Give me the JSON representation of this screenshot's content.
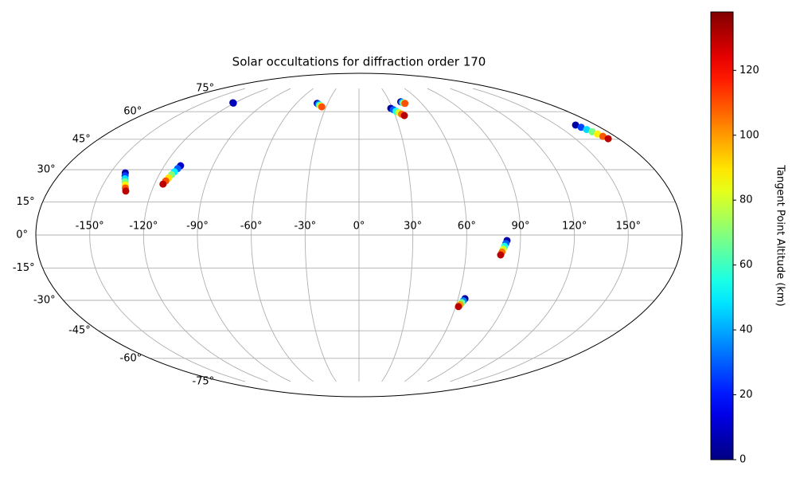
{
  "chart_data": {
    "type": "scatter",
    "projection": "mollweide",
    "title": "Solar occultations for diffraction order 170",
    "x": [
      -141,
      -140,
      -139,
      -138,
      -137,
      -136,
      -135,
      -110,
      -110.8,
      -111.7,
      -112.5,
      -113.3,
      -114.2,
      -115,
      -122,
      -121,
      -40,
      -38.5,
      -37,
      -35.5,
      -34,
      41,
      42,
      43,
      44,
      28.5,
      30.3,
      32.1,
      33.9,
      35.7,
      37.5,
      164.5,
      165.9,
      167.3,
      168.7,
      170,
      171.4,
      172.8,
      82.5,
      81.9,
      81.3,
      80.7,
      80.1,
      79.5,
      64.2,
      63.6,
      63,
      62.4,
      61.8
    ],
    "y": [
      28.5,
      27.1,
      25.7,
      24.3,
      22.8,
      21.4,
      20,
      31.9,
      30.5,
      29,
      27.6,
      26.1,
      24.7,
      23.2,
      65.4,
      65.2,
      65,
      64.5,
      64,
      63.4,
      62.9,
      66,
      65.7,
      65.3,
      65,
      62,
      61.2,
      60.3,
      59.5,
      58.6,
      57.8,
      52.5,
      51.3,
      50.1,
      48.9,
      47.7,
      46.5,
      45.3,
      -2.5,
      -3.8,
      -5.1,
      -6.4,
      -7.7,
      -9,
      -29.2,
      -30.2,
      -31.1,
      -32.1,
      -33
    ],
    "values": [
      5,
      26,
      47,
      68,
      88,
      109,
      130,
      10,
      30,
      50,
      70,
      90,
      110,
      130,
      3,
      8,
      5,
      31,
      58,
      84,
      110,
      5,
      40,
      75,
      110,
      5,
      30,
      55,
      80,
      105,
      130,
      5,
      26,
      47,
      68,
      88,
      109,
      130,
      5,
      30,
      55,
      80,
      105,
      130,
      5,
      36,
      68,
      99,
      130
    ],
    "colormap": "jet",
    "xticks": [
      {
        "value": -150,
        "label": "-150°"
      },
      {
        "value": -120,
        "label": "-120°"
      },
      {
        "value": -90,
        "label": "-90°"
      },
      {
        "value": -60,
        "label": "-60°"
      },
      {
        "value": -30,
        "label": "-30°"
      },
      {
        "value": 0,
        "label": "0°"
      },
      {
        "value": 30,
        "label": "30°"
      },
      {
        "value": 60,
        "label": "60°"
      },
      {
        "value": 90,
        "label": "90°"
      },
      {
        "value": 120,
        "label": "120°"
      },
      {
        "value": 150,
        "label": "150°"
      }
    ],
    "yticks": [
      {
        "value": -75,
        "label": "-75°"
      },
      {
        "value": -60,
        "label": "-60°"
      },
      {
        "value": -45,
        "label": "-45°"
      },
      {
        "value": -30,
        "label": "-30°"
      },
      {
        "value": -15,
        "label": "-15°"
      },
      {
        "value": 0,
        "label": "0°"
      },
      {
        "value": 15,
        "label": "15°"
      },
      {
        "value": 30,
        "label": "30°"
      },
      {
        "value": 45,
        "label": "45°"
      },
      {
        "value": 60,
        "label": "60°"
      },
      {
        "value": 75,
        "label": "75°"
      }
    ],
    "grid": true,
    "colorbar": {
      "label": "Tangent Point Altitude (km)",
      "clim": [
        0,
        138
      ],
      "ticks": [
        0,
        20,
        40,
        60,
        80,
        100,
        120
      ]
    }
  }
}
